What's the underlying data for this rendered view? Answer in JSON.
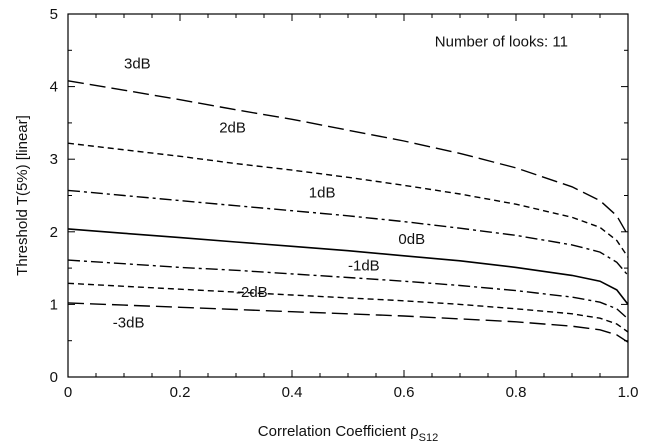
{
  "chart_data": {
    "type": "line",
    "xlabel": "Correlation Coefficient ρ",
    "xlabel_subscript": "S12",
    "ylabel": "Threshold T(5%) [linear]",
    "xlim": [
      0,
      1.0
    ],
    "ylim": [
      0,
      5
    ],
    "xticks": [
      0,
      0.2,
      0.4,
      0.6,
      0.8,
      1.0
    ],
    "xtick_labels": [
      "0",
      "0.2",
      "0.4",
      "0.6",
      "0.8",
      "1.0"
    ],
    "yticks": [
      0,
      1,
      2,
      3,
      4,
      5
    ],
    "ytick_labels": [
      "0",
      "1",
      "2",
      "3",
      "4",
      "5"
    ],
    "annotation": "Number of looks: 11",
    "grid": false,
    "series": [
      {
        "name": "3dB",
        "style": "long-dash",
        "label_at": [
          0.1,
          4.25
        ],
        "x": [
          0,
          0.1,
          0.2,
          0.3,
          0.4,
          0.5,
          0.6,
          0.7,
          0.8,
          0.9,
          0.95,
          0.98,
          1.0
        ],
        "y": [
          4.08,
          3.95,
          3.82,
          3.68,
          3.55,
          3.4,
          3.25,
          3.08,
          2.88,
          2.62,
          2.43,
          2.22,
          1.95
        ]
      },
      {
        "name": "2dB",
        "style": "short-dash",
        "label_at": [
          0.27,
          3.37
        ],
        "x": [
          0,
          0.1,
          0.2,
          0.3,
          0.4,
          0.5,
          0.6,
          0.7,
          0.8,
          0.9,
          0.95,
          0.98,
          1.0
        ],
        "y": [
          3.22,
          3.13,
          3.04,
          2.94,
          2.85,
          2.75,
          2.64,
          2.52,
          2.38,
          2.2,
          2.06,
          1.88,
          1.65
        ]
      },
      {
        "name": "1dB",
        "style": "dash-dot",
        "label_at": [
          0.43,
          2.47
        ],
        "x": [
          0,
          0.1,
          0.2,
          0.3,
          0.4,
          0.5,
          0.6,
          0.7,
          0.8,
          0.9,
          0.95,
          0.98,
          1.0
        ],
        "y": [
          2.57,
          2.5,
          2.43,
          2.36,
          2.29,
          2.22,
          2.14,
          2.05,
          1.95,
          1.82,
          1.72,
          1.58,
          1.4
        ]
      },
      {
        "name": "0dB",
        "style": "solid",
        "label_at": [
          0.59,
          1.83
        ],
        "x": [
          0,
          0.1,
          0.2,
          0.3,
          0.4,
          0.5,
          0.6,
          0.7,
          0.8,
          0.9,
          0.95,
          0.98,
          1.0
        ],
        "y": [
          2.04,
          1.98,
          1.92,
          1.86,
          1.8,
          1.74,
          1.67,
          1.6,
          1.51,
          1.4,
          1.32,
          1.2,
          1.0
        ]
      },
      {
        "name": "-1dB",
        "style": "dash-dot",
        "label_at": [
          0.5,
          1.47
        ],
        "x": [
          0,
          0.1,
          0.2,
          0.3,
          0.4,
          0.5,
          0.6,
          0.7,
          0.8,
          0.9,
          0.95,
          0.98,
          1.0
        ],
        "y": [
          1.61,
          1.56,
          1.51,
          1.47,
          1.42,
          1.37,
          1.32,
          1.26,
          1.19,
          1.1,
          1.03,
          0.94,
          0.8
        ]
      },
      {
        "name": "-2dB",
        "style": "short-dash",
        "label_at": [
          0.3,
          1.1
        ],
        "x": [
          0,
          0.1,
          0.2,
          0.3,
          0.4,
          0.5,
          0.6,
          0.7,
          0.8,
          0.9,
          0.95,
          0.98,
          1.0
        ],
        "y": [
          1.29,
          1.25,
          1.21,
          1.17,
          1.13,
          1.09,
          1.05,
          1.0,
          0.94,
          0.87,
          0.81,
          0.73,
          0.62
        ]
      },
      {
        "name": "-3dB",
        "style": "long-dash",
        "label_at": [
          0.08,
          0.68
        ],
        "x": [
          0,
          0.1,
          0.2,
          0.3,
          0.4,
          0.5,
          0.6,
          0.7,
          0.8,
          0.9,
          0.95,
          0.98,
          1.0
        ],
        "y": [
          1.02,
          0.99,
          0.96,
          0.93,
          0.9,
          0.87,
          0.84,
          0.8,
          0.76,
          0.7,
          0.65,
          0.58,
          0.48
        ]
      }
    ]
  }
}
